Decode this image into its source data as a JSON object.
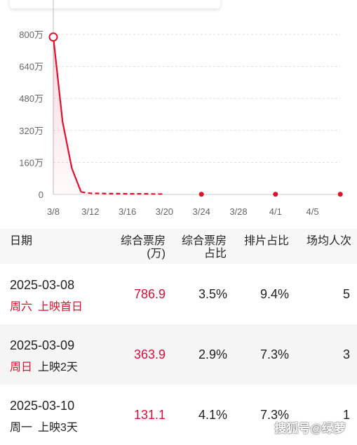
{
  "chart_data": {
    "type": "area",
    "y_ticks": [
      "800万",
      "640万",
      "480万",
      "320万",
      "160万",
      "0"
    ],
    "x_ticks": [
      "3/8",
      "3/12",
      "3/16",
      "3/20",
      "3/24",
      "3/28",
      "4/1",
      "4/5"
    ],
    "ylim": [
      0,
      800
    ],
    "series": [
      {
        "x": [
          "3/8",
          "3/9",
          "3/10",
          "3/11",
          "3/12",
          "3/13",
          "3/14",
          "3/15",
          "3/16",
          "3/17",
          "3/18",
          "3/19",
          "3/20",
          "3/21",
          "3/22",
          "3/23",
          "3/24",
          "3/25",
          "3/26",
          "3/27",
          "3/28",
          "3/29",
          "3/30",
          "3/31",
          "4/1",
          "4/2",
          "4/3",
          "4/4",
          "4/5",
          "4/6",
          "4/7",
          "4/8"
        ],
        "y": [
          786.9,
          363.9,
          131.1,
          12,
          6,
          5,
          4,
          4,
          3,
          3,
          3,
          2,
          2,
          null,
          null,
          null,
          1,
          null,
          null,
          null,
          null,
          null,
          null,
          null,
          1,
          null,
          null,
          null,
          null,
          null,
          null,
          1
        ]
      }
    ],
    "highlighted_point": {
      "x": "3/8",
      "y": 786.9
    },
    "colors": {
      "line": "#e0102d",
      "grid": "#dddddd",
      "axis_text": "#666666"
    },
    "grid": true
  },
  "table": {
    "headers": {
      "date": "日期",
      "box_line1": "综合票房",
      "box_line2": "(万)",
      "share_line1": "综合票房",
      "share_line2": "占比",
      "screen": "排片占比",
      "avg": "场均人次"
    },
    "rows": [
      {
        "date": "2025-03-08",
        "weekday": "周六",
        "release": "上映首日",
        "weekday_red": true,
        "release_red": true,
        "box": "786.9",
        "share": "3.5%",
        "screen": "9.4%",
        "avg": "5"
      },
      {
        "date": "2025-03-09",
        "weekday": "周日",
        "release": "上映2天",
        "weekday_red": true,
        "release_red": false,
        "box": "363.9",
        "share": "2.9%",
        "screen": "7.3%",
        "avg": "3"
      },
      {
        "date": "2025-03-10",
        "weekday": "周一",
        "release": "上映3天",
        "weekday_red": false,
        "release_red": false,
        "box": "131.1",
        "share": "4.1%",
        "screen": "7.3%",
        "avg": "1"
      }
    ]
  },
  "watermark": "搜狐号@绿萝"
}
